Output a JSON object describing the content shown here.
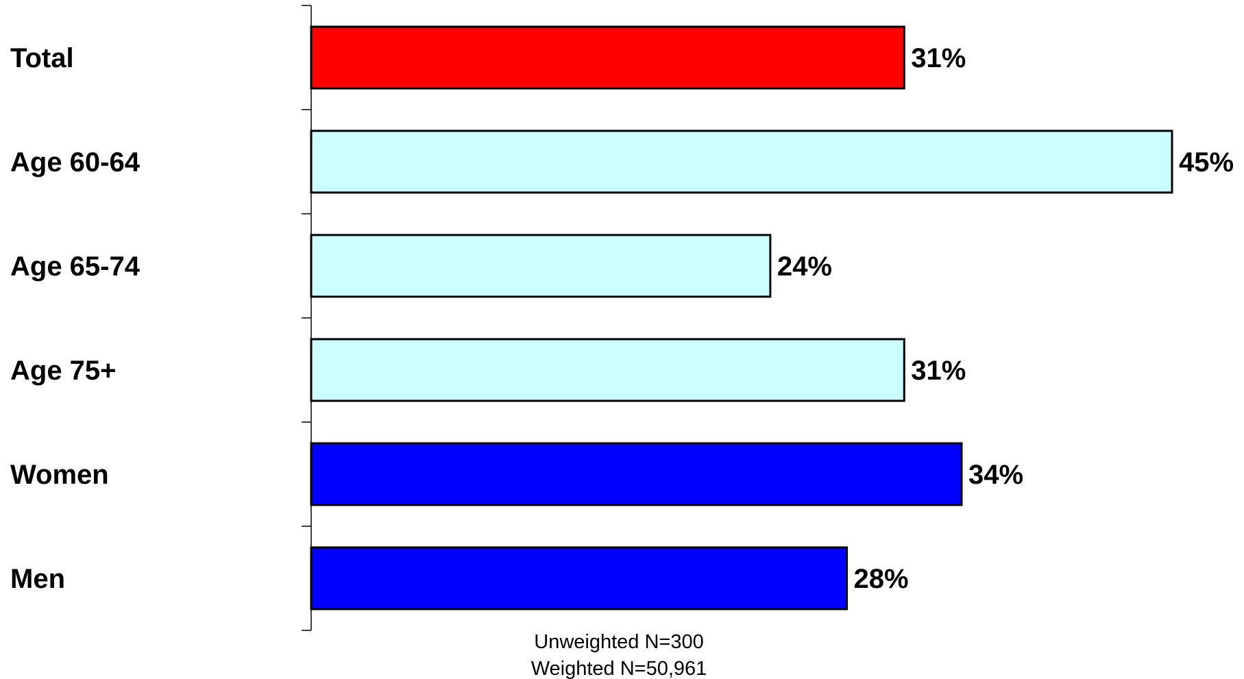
{
  "chart_data": {
    "type": "bar",
    "orientation": "horizontal",
    "categories": [
      "Total",
      "Age 60-64",
      "Age 65-74",
      "Age 75+",
      "Women",
      "Men"
    ],
    "values": [
      31,
      45,
      24,
      31,
      34,
      28
    ],
    "value_labels": [
      "31%",
      "45%",
      "24%",
      "31%",
      "34%",
      "28%"
    ],
    "bar_colors": [
      "#ff0000",
      "#ccffff",
      "#ccffff",
      "#ccffff",
      "#0000ff",
      "#0000ff"
    ],
    "xlim": [
      0,
      45
    ],
    "grid": false,
    "title": "",
    "xlabel": "",
    "ylabel": ""
  },
  "notes": {
    "unweighted": "Unweighted N=300",
    "weighted": "Weighted N=50,961"
  }
}
